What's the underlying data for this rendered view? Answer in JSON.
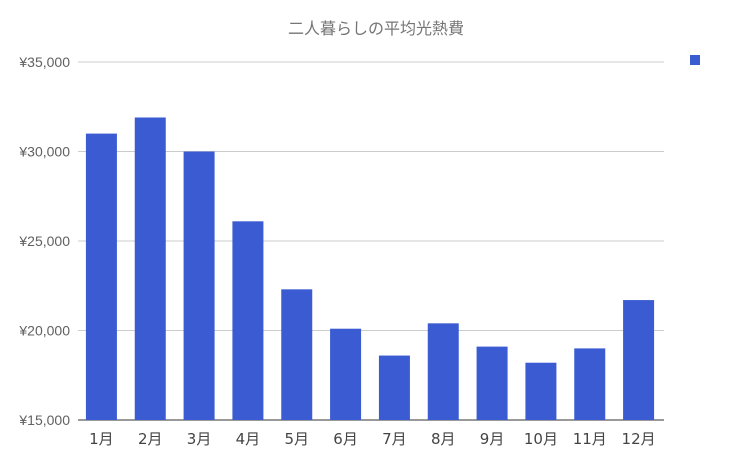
{
  "chart_data": {
    "type": "bar",
    "title": "二人暮らしの平均光熱費",
    "xlabel": "",
    "ylabel": "",
    "categories": [
      "1月",
      "2月",
      "3月",
      "4月",
      "5月",
      "6月",
      "7月",
      "8月",
      "9月",
      "10月",
      "11月",
      "12月"
    ],
    "series": [
      {
        "values": [
          31000,
          31900,
          30000,
          26100,
          22300,
          20100,
          18600,
          20400,
          19100,
          18200,
          19000,
          21700
        ],
        "color": "#3a5bd1"
      }
    ],
    "ylim": [
      15000,
      35000
    ],
    "yticks": [
      {
        "value": 15000,
        "label": "¥15,000"
      },
      {
        "value": 20000,
        "label": "¥20,000"
      },
      {
        "value": 25000,
        "label": "¥25,000"
      },
      {
        "value": 30000,
        "label": "¥30,000"
      },
      {
        "value": 35000,
        "label": "¥35,000"
      }
    ],
    "grid": true,
    "legend": {
      "placement": "top-right",
      "entries": [
        {
          "label": "",
          "color": "#3a5bd1"
        }
      ]
    }
  }
}
